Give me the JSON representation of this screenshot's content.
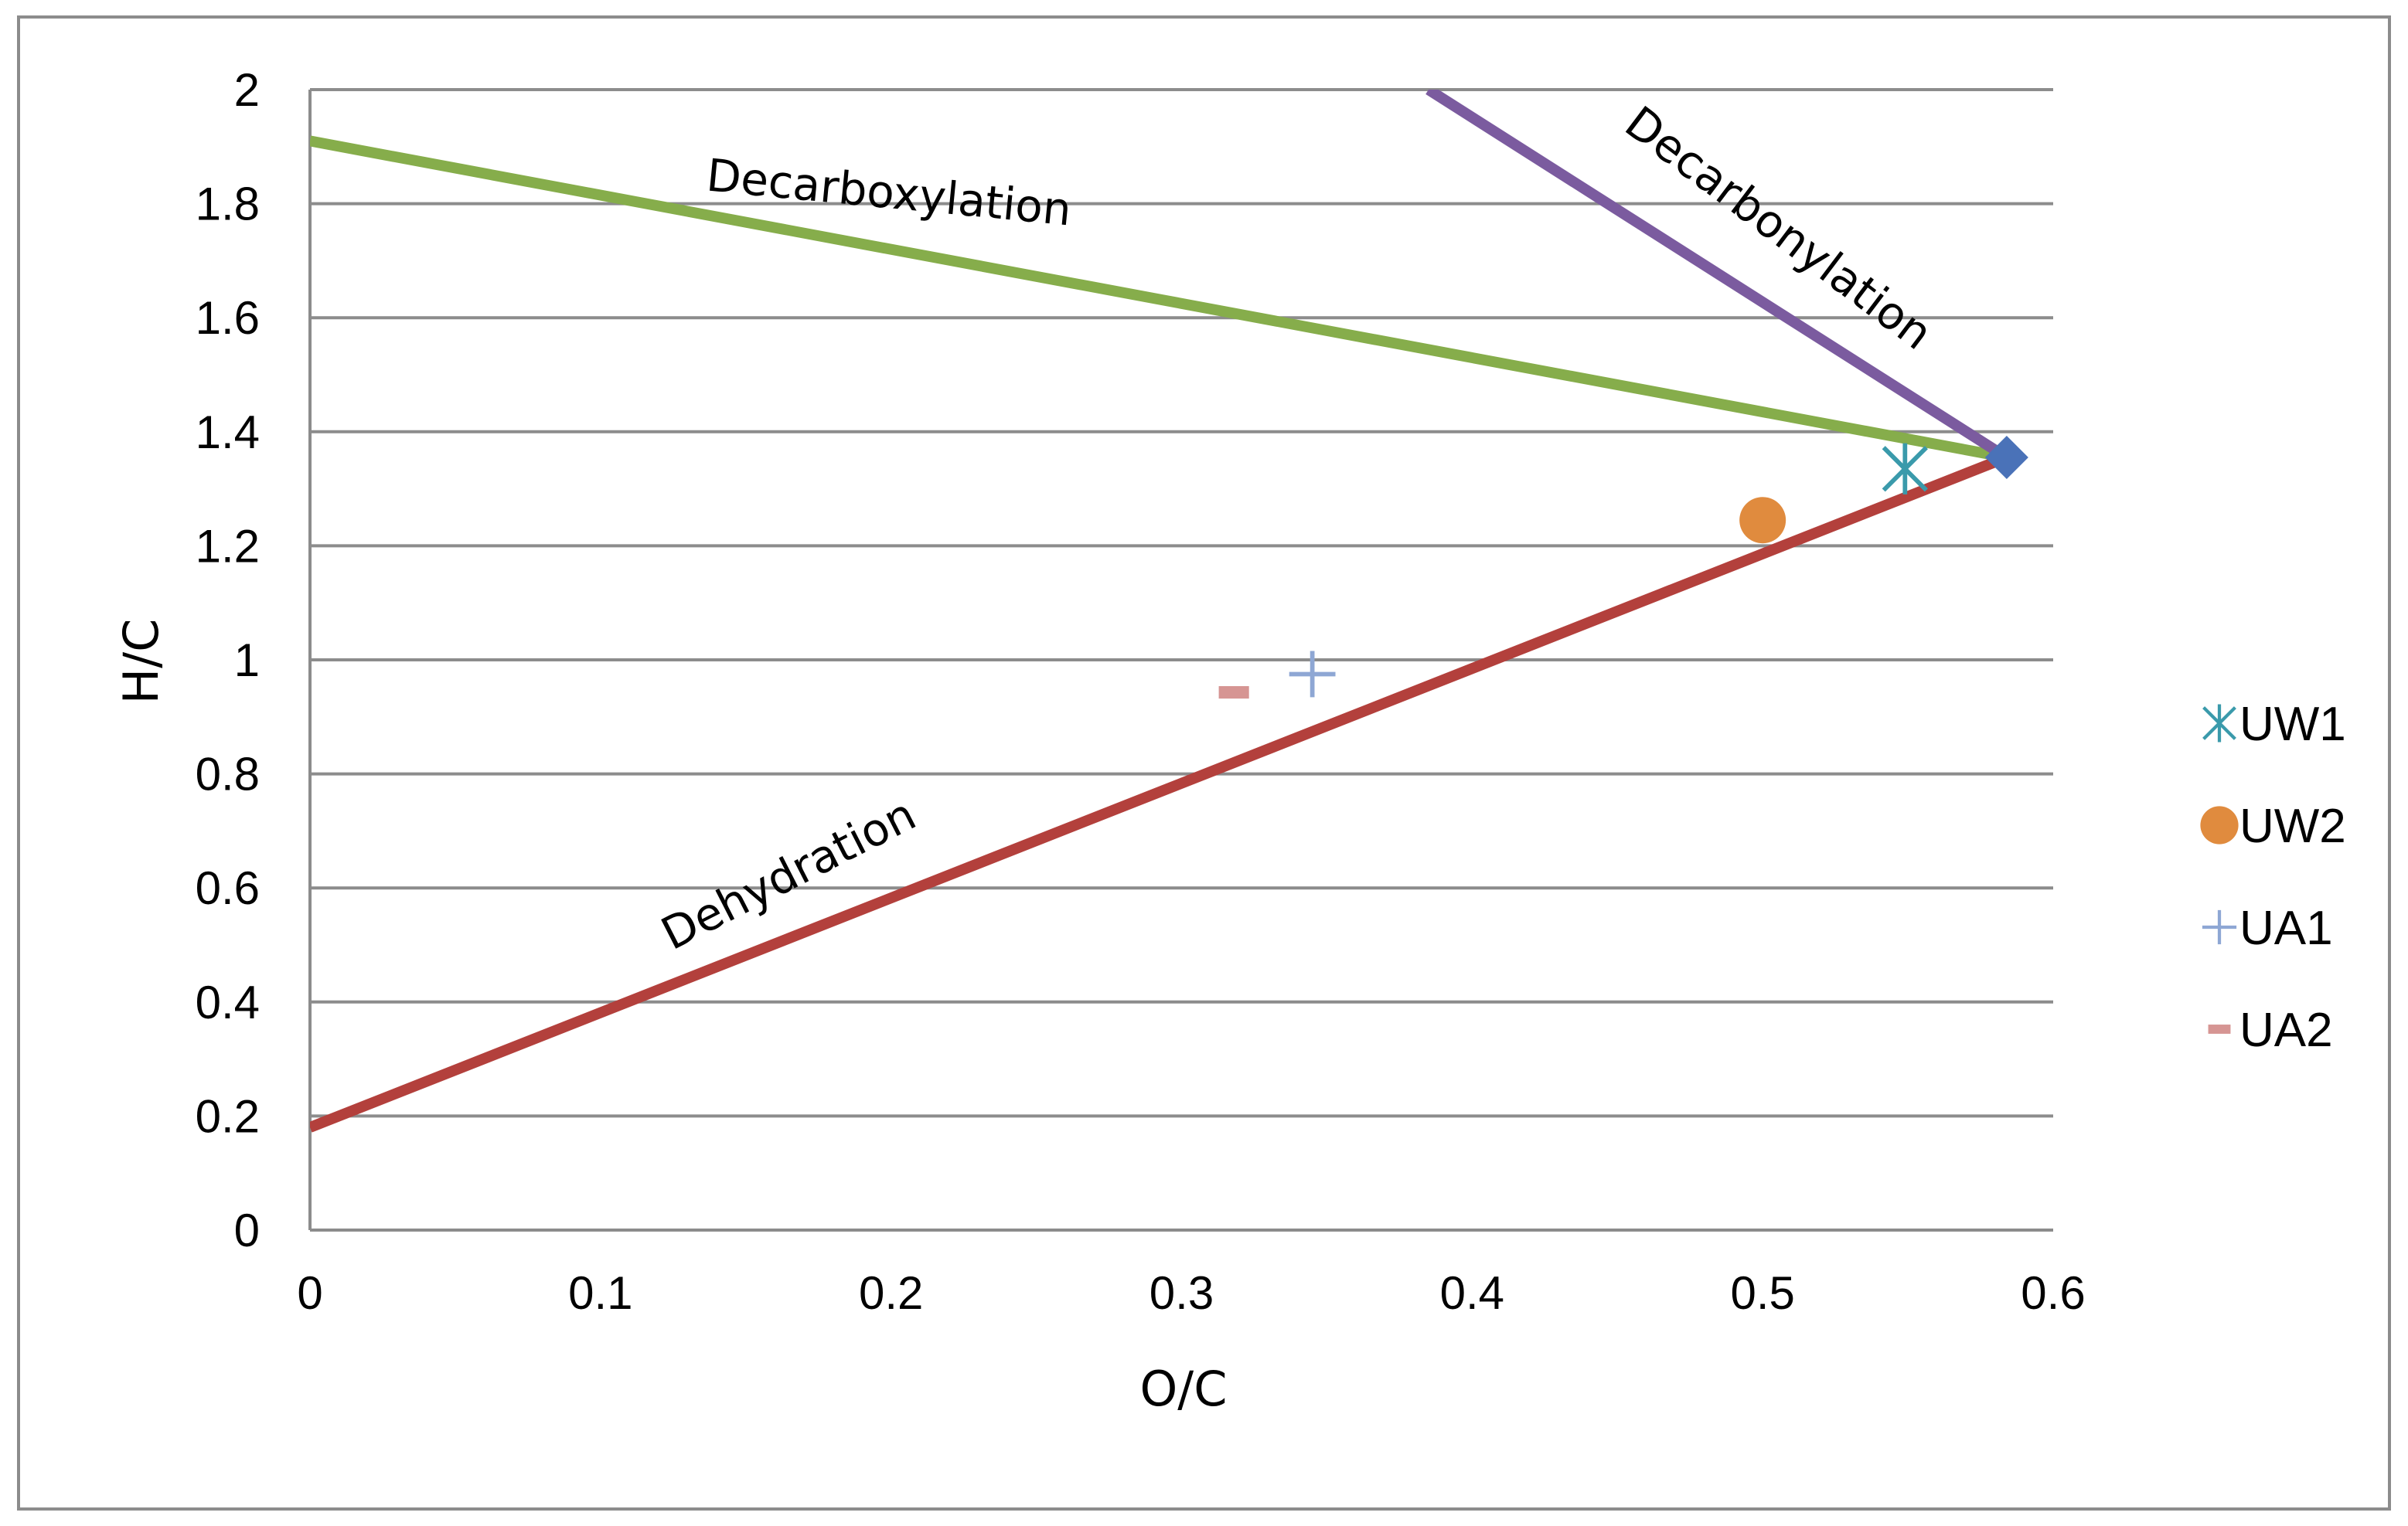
{
  "chart_data": {
    "type": "scatter",
    "xlabel": "O/C",
    "ylabel": "H/C",
    "xlim": [
      0,
      0.6
    ],
    "ylim": [
      0,
      2
    ],
    "x_ticks": [
      "0",
      "0.1",
      "0.2",
      "0.3",
      "0.4",
      "0.5",
      "0.6"
    ],
    "y_ticks": [
      "0",
      "0.2",
      "0.4",
      "0.6",
      "0.8",
      "1",
      "1.2",
      "1.4",
      "1.6",
      "1.8",
      "2"
    ],
    "grid": "horizontal",
    "legend_position": "right",
    "reference_point": {
      "x": 0.584,
      "y": 1.355,
      "color": "#4a72b8",
      "marker": "diamond"
    },
    "lines": [
      {
        "name": "Decarboxylation",
        "color": "#86ad4b",
        "points": [
          [
            0,
            1.91
          ],
          [
            0.584,
            1.355
          ]
        ]
      },
      {
        "name": "Decarbonylation",
        "color": "#7b5b9f",
        "points": [
          [
            0.385,
            2.0
          ],
          [
            0.584,
            1.355
          ]
        ]
      },
      {
        "name": "Dehydration",
        "color": "#b3403c",
        "points": [
          [
            0,
            0.18
          ],
          [
            0.584,
            1.355
          ]
        ]
      }
    ],
    "series": [
      {
        "name": "UW1",
        "x": 0.549,
        "y": 1.335,
        "color": "#3a9aab",
        "marker": "asterisk"
      },
      {
        "name": "UW2",
        "x": 0.5,
        "y": 1.245,
        "color": "#e08b3e",
        "marker": "circle"
      },
      {
        "name": "UA1",
        "x": 0.345,
        "y": 0.975,
        "color": "#8ea7d4",
        "marker": "plus"
      },
      {
        "name": "UA2",
        "x": 0.318,
        "y": 0.943,
        "color": "#d69593",
        "marker": "dash"
      }
    ]
  }
}
